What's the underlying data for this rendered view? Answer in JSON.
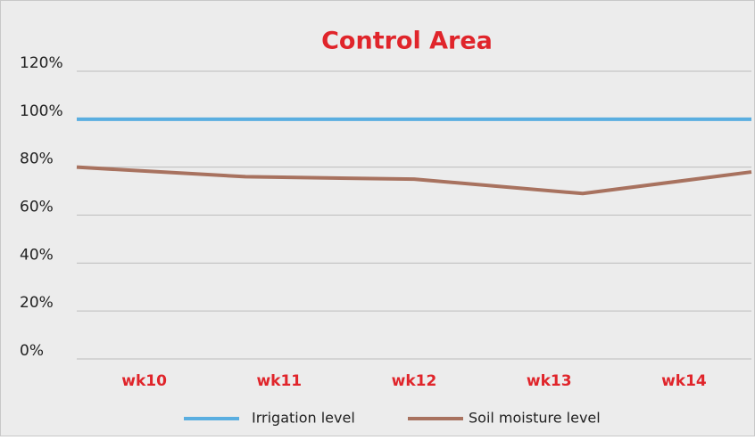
{
  "chart_data": {
    "type": "line",
    "title": "Control Area",
    "categories": [
      "wk10",
      "wk11",
      "wk12",
      "wk13",
      "wk14"
    ],
    "series": [
      {
        "name": "Irrigation level",
        "color": "#5aaee0",
        "values": [
          100,
          100,
          100,
          100,
          100
        ]
      },
      {
        "name": "Soil moisture level",
        "color": "#a8725f",
        "values": [
          80,
          76,
          75,
          69,
          78
        ]
      }
    ],
    "ylim": [
      0,
      120
    ],
    "yticks": [
      {
        "value": 0,
        "label": "0%"
      },
      {
        "value": 20,
        "label": "20%"
      },
      {
        "value": 40,
        "label": "40%"
      },
      {
        "value": 60,
        "label": "60%"
      },
      {
        "value": 80,
        "label": "80%"
      },
      {
        "value": 100,
        "label": "100%"
      },
      {
        "value": 120,
        "label": "120%"
      }
    ],
    "grid": true,
    "legend": "bottom"
  }
}
